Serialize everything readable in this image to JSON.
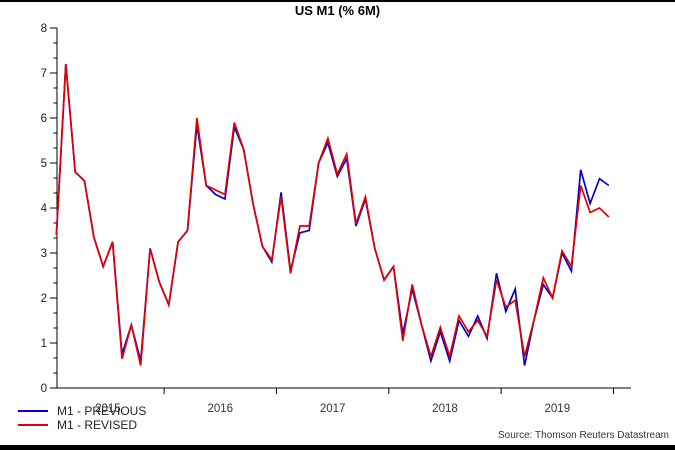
{
  "page": {
    "title": "US M1 (% 6M)",
    "source": "Source: Thomson Reuters Datastream"
  },
  "legend": {
    "items": [
      {
        "label": "M1 - PREVIOUS",
        "color": "#0000cd"
      },
      {
        "label": "M1 - REVISED",
        "color": "#e00000"
      }
    ]
  },
  "chart_data": {
    "type": "line",
    "title": "US M1 (% 6M)",
    "x_unit": "month",
    "months": [
      "2015-01",
      "2015-02",
      "2015-03",
      "2015-04",
      "2015-05",
      "2015-06",
      "2015-07",
      "2015-08",
      "2015-09",
      "2015-10",
      "2015-11",
      "2015-12",
      "2016-01",
      "2016-02",
      "2016-03",
      "2016-04",
      "2016-05",
      "2016-06",
      "2016-07",
      "2016-08",
      "2016-09",
      "2016-10",
      "2016-11",
      "2016-12",
      "2017-01",
      "2017-02",
      "2017-03",
      "2017-04",
      "2017-05",
      "2017-06",
      "2017-07",
      "2017-08",
      "2017-09",
      "2017-10",
      "2017-11",
      "2017-12",
      "2018-01",
      "2018-02",
      "2018-03",
      "2018-04",
      "2018-05",
      "2018-06",
      "2018-07",
      "2018-08",
      "2018-09",
      "2018-10",
      "2018-11",
      "2018-12",
      "2019-01",
      "2019-02",
      "2019-03",
      "2019-04",
      "2019-05",
      "2019-06",
      "2019-07",
      "2019-08",
      "2019-09",
      "2019-10",
      "2019-11",
      "2019-12"
    ],
    "year_labels": [
      "2015",
      "2016",
      "2017",
      "2018",
      "2019"
    ],
    "y_ticks": [
      0,
      1,
      2,
      3,
      4,
      5,
      6,
      7,
      8
    ],
    "ylim": [
      0,
      8
    ],
    "grid": false,
    "legend_position": "bottom-left",
    "series": [
      {
        "name": "M1 - PREVIOUS",
        "color": "#0000cd",
        "values": [
          3.4,
          7.2,
          4.8,
          4.6,
          3.35,
          2.7,
          3.25,
          0.75,
          1.4,
          0.6,
          3.1,
          2.35,
          1.85,
          3.25,
          3.5,
          5.85,
          4.5,
          4.3,
          4.2,
          5.8,
          5.3,
          4.1,
          3.15,
          2.8,
          4.35,
          2.6,
          3.45,
          3.5,
          5.0,
          5.45,
          4.7,
          5.1,
          3.6,
          4.2,
          3.1,
          2.4,
          2.7,
          1.2,
          2.2,
          1.4,
          0.6,
          1.25,
          0.6,
          1.5,
          1.15,
          1.6,
          1.1,
          2.55,
          1.7,
          2.2,
          0.5,
          1.5,
          2.3,
          2.0,
          3.0,
          2.6,
          4.85,
          4.1,
          4.65,
          4.5
        ]
      },
      {
        "name": "M1 - REVISED",
        "color": "#e00000",
        "values": [
          3.4,
          7.2,
          4.8,
          4.6,
          3.35,
          2.7,
          3.25,
          0.65,
          1.4,
          0.5,
          3.1,
          2.35,
          1.85,
          3.25,
          3.5,
          6.0,
          4.5,
          4.4,
          4.3,
          5.9,
          5.3,
          4.1,
          3.15,
          2.85,
          4.25,
          2.55,
          3.6,
          3.6,
          5.0,
          5.55,
          4.75,
          5.2,
          3.65,
          4.25,
          3.1,
          2.4,
          2.7,
          1.05,
          2.3,
          1.4,
          0.7,
          1.35,
          0.7,
          1.6,
          1.25,
          1.5,
          1.15,
          2.4,
          1.8,
          1.95,
          0.7,
          1.5,
          2.45,
          2.0,
          3.05,
          2.7,
          4.5,
          3.9,
          4.0,
          3.8
        ]
      }
    ]
  }
}
